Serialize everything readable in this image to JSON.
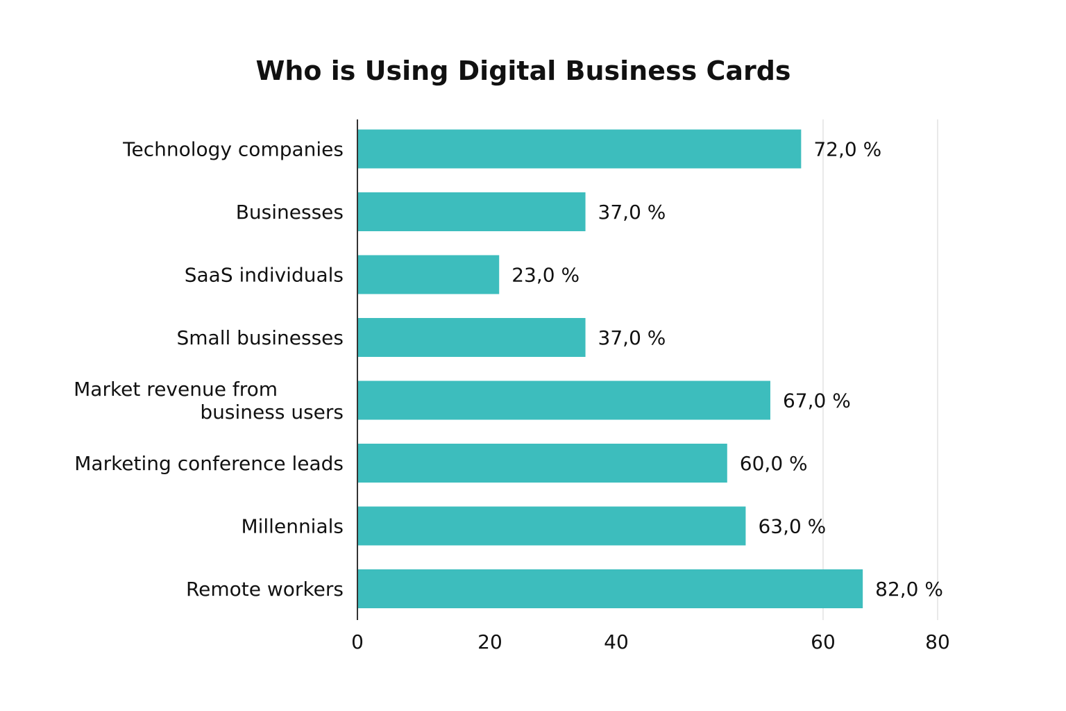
{
  "chart_data": {
    "type": "bar",
    "orientation": "horizontal",
    "title": "Who is Using Digital Business Cards",
    "categories": [
      "Technology companies",
      "Businesses",
      "SaaS individuals",
      "Small businesses",
      "Market revenue from business users",
      "Marketing conference leads",
      "Millennials",
      "Remote workers"
    ],
    "category_lines": [
      [
        "Technology companies"
      ],
      [
        "Businesses"
      ],
      [
        "SaaS individuals"
      ],
      [
        "Small businesses"
      ],
      [
        "Market revenue from",
        "business users"
      ],
      [
        "Marketing conference leads"
      ],
      [
        "Millennials"
      ],
      [
        "Remote workers"
      ]
    ],
    "values": [
      72.0,
      37.0,
      23.0,
      37.0,
      67.0,
      60.0,
      63.0,
      82.0
    ],
    "value_labels": [
      "72,0 %",
      "37,0 %",
      "23,0 %",
      "37,0 %",
      "67,0 %",
      "60,0 %",
      "63,0 %",
      "82,0 %"
    ],
    "x_ticks": [
      "0",
      "20",
      "40",
      "60",
      "80"
    ],
    "xlabel": "",
    "ylabel": "",
    "grid": "vertical lines at 60 and 80",
    "legend": "none",
    "bar_color": "#3dbdbd"
  }
}
